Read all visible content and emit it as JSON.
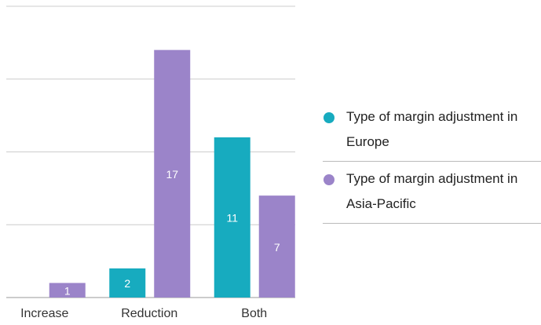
{
  "chart_data": {
    "type": "bar",
    "categories": [
      "Increase",
      "Reduction",
      "Both"
    ],
    "series": [
      {
        "name": "Type of margin adjustment in Europe",
        "color": "#17abbf",
        "values": [
          null,
          2,
          11
        ]
      },
      {
        "name": "Type of margin adjustment in Asia-Pacific",
        "color": "#9b84c9",
        "values": [
          1,
          17,
          7
        ]
      }
    ],
    "ylim": [
      0,
      20
    ],
    "yticks": [
      0,
      5,
      10,
      15,
      20
    ],
    "grid": true,
    "legend": "right"
  }
}
